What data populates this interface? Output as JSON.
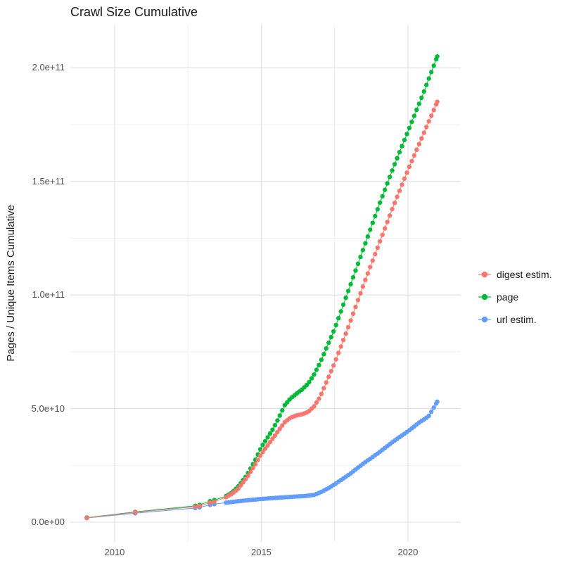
{
  "title": "Crawl Size Cumulative",
  "theme": {
    "background": "#FFFFFF",
    "grid_major": "#E2E2E2",
    "grid_minor": "#F0F0F0",
    "axis_text_color": "#4D4D4D",
    "title_color": "#1A1A1A"
  },
  "axes": {
    "x": {
      "ticks": [
        2010,
        2015,
        2020
      ],
      "tick_labels": [
        "2010",
        "2015",
        "2020"
      ],
      "minor_ticks": [
        2012.5,
        2017.5
      ]
    },
    "y": {
      "label": "Pages / Unique Items Cumulative",
      "ticks": [
        0,
        50000000000.0,
        100000000000.0,
        150000000000.0,
        200000000000.0
      ],
      "tick_labels": [
        "0.0e+00",
        "5.0e+10",
        "1.0e+11",
        "1.5e+11",
        "2.0e+11"
      ],
      "minor_ticks": [
        25000000000.0,
        75000000000.0,
        125000000000.0,
        175000000000.0
      ]
    }
  },
  "legend": {
    "entries": [
      {
        "label": "digest estim.",
        "color": "#F8766D"
      },
      {
        "label": "page",
        "color": "#00BA38"
      },
      {
        "label": "url estim.",
        "color": "#619CFF"
      }
    ]
  },
  "chart_data": {
    "type": "scatter",
    "title": "Crawl Size Cumulative",
    "xlabel": "",
    "ylabel": "Pages / Unique Items Cumulative",
    "xlim": [
      2008.49,
      2021.8
    ],
    "ylim": [
      -8700000000.0,
      219000000000.0
    ],
    "grid": true,
    "legend_position": "right",
    "sample_step_years": 0.0833,
    "series": [
      {
        "name": "digest estim.",
        "color": "#F8766D",
        "points_sparse": [
          [
            2009.05,
            1900000000.0
          ],
          [
            2010.7,
            4300000000.0
          ],
          [
            2012.75,
            6800000000.0
          ],
          [
            2012.9,
            7100000000.0
          ],
          [
            2013.25,
            8600000000.0
          ],
          [
            2013.4,
            9000000000.0
          ]
        ],
        "anchors_dense": [
          [
            2013.8,
            11000000000.0
          ],
          [
            2014.0,
            12500000000.0
          ],
          [
            2014.2,
            14500000000.0
          ],
          [
            2014.5,
            19500000000.0
          ],
          [
            2014.8,
            25500000000.0
          ],
          [
            2015.0,
            30000000000.0
          ],
          [
            2015.2,
            33500000000.0
          ],
          [
            2015.4,
            37000000000.0
          ],
          [
            2015.6,
            40500000000.0
          ],
          [
            2015.8,
            44000000000.0
          ],
          [
            2016.0,
            46000000000.0
          ],
          [
            2016.2,
            47000000000.0
          ],
          [
            2016.4,
            47500000000.0
          ],
          [
            2016.6,
            48500000000.0
          ],
          [
            2016.8,
            51000000000.0
          ],
          [
            2017.0,
            55000000000.0
          ],
          [
            2017.5,
            70000000000.0
          ],
          [
            2018.0,
            87000000000.0
          ],
          [
            2018.5,
            105000000000.0
          ],
          [
            2019.0,
            122000000000.0
          ],
          [
            2019.5,
            139000000000.0
          ],
          [
            2020.0,
            155000000000.0
          ],
          [
            2020.5,
            170000000000.0
          ],
          [
            2021.0,
            185000000000.0
          ]
        ]
      },
      {
        "name": "page",
        "color": "#00BA38",
        "points_sparse": [
          [
            2009.05,
            2000000000.0
          ],
          [
            2010.7,
            4500000000.0
          ],
          [
            2012.75,
            7200000000.0
          ],
          [
            2012.9,
            7600000000.0
          ],
          [
            2013.25,
            9200000000.0
          ],
          [
            2013.4,
            9700000000.0
          ]
        ],
        "anchors_dense": [
          [
            2013.8,
            11500000000.0
          ],
          [
            2014.0,
            13000000000.0
          ],
          [
            2014.2,
            15500000000.0
          ],
          [
            2014.5,
            20500000000.0
          ],
          [
            2014.8,
            27500000000.0
          ],
          [
            2015.0,
            33000000000.0
          ],
          [
            2015.2,
            37000000000.0
          ],
          [
            2015.4,
            41000000000.0
          ],
          [
            2015.6,
            46000000000.0
          ],
          [
            2015.8,
            51500000000.0
          ],
          [
            2016.0,
            54500000000.0
          ],
          [
            2016.2,
            56500000000.0
          ],
          [
            2016.4,
            58500000000.0
          ],
          [
            2016.6,
            61000000000.0
          ],
          [
            2016.8,
            65000000000.0
          ],
          [
            2017.0,
            70000000000.0
          ],
          [
            2017.5,
            85000000000.0
          ],
          [
            2018.0,
            103000000000.0
          ],
          [
            2018.5,
            121000000000.0
          ],
          [
            2019.0,
            139000000000.0
          ],
          [
            2019.5,
            156000000000.0
          ],
          [
            2020.0,
            172000000000.0
          ],
          [
            2020.5,
            188000000000.0
          ],
          [
            2021.0,
            205000000000.0
          ]
        ]
      },
      {
        "name": "url estim.",
        "color": "#619CFF",
        "points_sparse": [
          [
            2009.05,
            1800000000.0
          ],
          [
            2010.7,
            3900000000.0
          ],
          [
            2012.75,
            6200000000.0
          ],
          [
            2012.9,
            6500000000.0
          ],
          [
            2013.25,
            7600000000.0
          ],
          [
            2013.4,
            7900000000.0
          ]
        ],
        "anchors_dense": [
          [
            2013.8,
            8600000000.0
          ],
          [
            2014.0,
            8900000000.0
          ],
          [
            2014.5,
            9600000000.0
          ],
          [
            2015.0,
            10200000000.0
          ],
          [
            2015.5,
            10700000000.0
          ],
          [
            2016.0,
            11100000000.0
          ],
          [
            2016.5,
            11500000000.0
          ],
          [
            2016.8,
            12000000000.0
          ],
          [
            2017.0,
            13000000000.0
          ],
          [
            2017.3,
            15000000000.0
          ],
          [
            2017.6,
            17500000000.0
          ],
          [
            2018.0,
            21000000000.0
          ],
          [
            2018.5,
            26000000000.0
          ],
          [
            2019.0,
            30500000000.0
          ],
          [
            2019.5,
            35500000000.0
          ],
          [
            2020.0,
            40000000000.0
          ],
          [
            2020.4,
            44000000000.0
          ],
          [
            2020.7,
            46500000000.0
          ],
          [
            2021.0,
            53000000000.0
          ]
        ]
      }
    ]
  }
}
